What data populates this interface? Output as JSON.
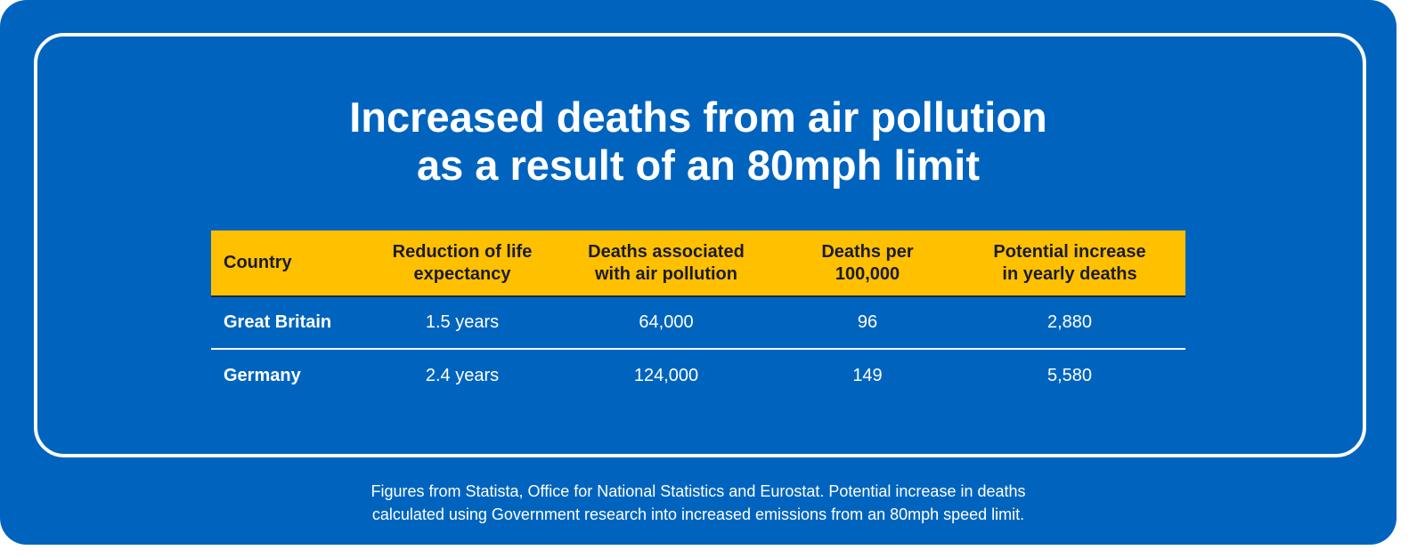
{
  "header": {
    "title": [
      "Increased deaths from air pollution",
      "as a result of an 80mph limit"
    ]
  },
  "table": {
    "columns": [
      [
        "Country"
      ],
      [
        "Reduction of life",
        "expectancy"
      ],
      [
        "Deaths associated",
        "with air pollution"
      ],
      [
        "Deaths per",
        "100,000"
      ],
      [
        "Potential increase",
        "in yearly deaths"
      ]
    ],
    "rows": [
      [
        "Great Britain",
        "1.5 years",
        "64,000",
        "96",
        "2,880"
      ],
      [
        "Germany",
        "2.4 years",
        "124,000",
        "149",
        "5,580"
      ]
    ]
  },
  "footer": [
    "Figures from Statista, Office for National Statistics and Eurostat. Potential increase in deaths",
    "calculated using Government research into increased emissions from an 80mph speed limit."
  ]
}
